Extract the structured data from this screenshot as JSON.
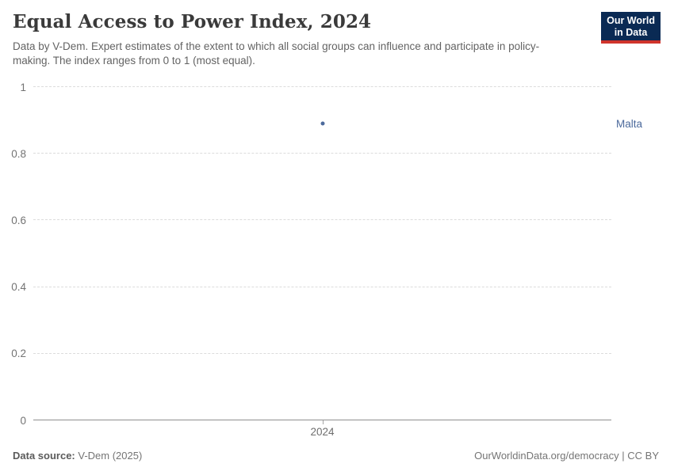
{
  "header": {
    "title": "Equal Access to Power Index, 2024",
    "subtitle": "Data by V-Dem. Expert estimates of the extent to which all social groups can influence and participate in policy-making. The index ranges from 0 to 1 (most equal).",
    "logo": {
      "line1": "Our World",
      "line2": "in Data"
    }
  },
  "chart_data": {
    "type": "scatter",
    "title": "Equal Access to Power Index, 2024",
    "x": [
      2024
    ],
    "xticks": [
      "2024"
    ],
    "series": [
      {
        "name": "Malta",
        "values": [
          0.89
        ],
        "color": "#4c6a9c"
      }
    ],
    "ylim": [
      0,
      1
    ],
    "yticks": [
      0,
      0.2,
      0.4,
      0.6,
      0.8,
      1
    ],
    "xlabel": "",
    "ylabel": "",
    "grid": "horizontal-dashed",
    "legend": "entity-label-right-of-point"
  },
  "footer": {
    "source_label": "Data source:",
    "source_value": "V-Dem (2025)",
    "right_text": "OurWorldinData.org/democracy | CC BY"
  },
  "colors": {
    "accent": "#4c6a9c",
    "logo_bg": "#0a2a54",
    "logo_red": "#d0342c",
    "gridline": "#dcdcdc",
    "axis": "#8f8f8f"
  }
}
